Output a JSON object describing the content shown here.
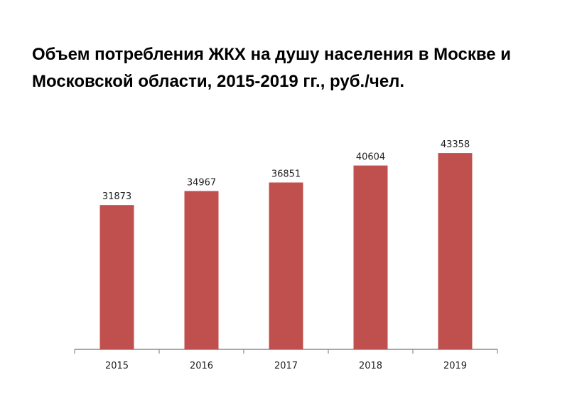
{
  "chart_data": {
    "type": "bar",
    "title": "Объем потребления ЖКХ на душу населения в Москве и Московской области, 2015-2019 гг., руб./чел.",
    "xlabel": "",
    "ylabel": "",
    "categories": [
      "2015",
      "2016",
      "2017",
      "2018",
      "2019"
    ],
    "values": [
      31873,
      34967,
      36851,
      40604,
      43358
    ],
    "data_labels": [
      "31873",
      "34967",
      "36851",
      "40604",
      "43358"
    ],
    "ylim": [
      0,
      55000
    ],
    "grid": false,
    "legend": "none",
    "bar_color": "#c0504d",
    "axis_color": "#8c8c8c"
  }
}
